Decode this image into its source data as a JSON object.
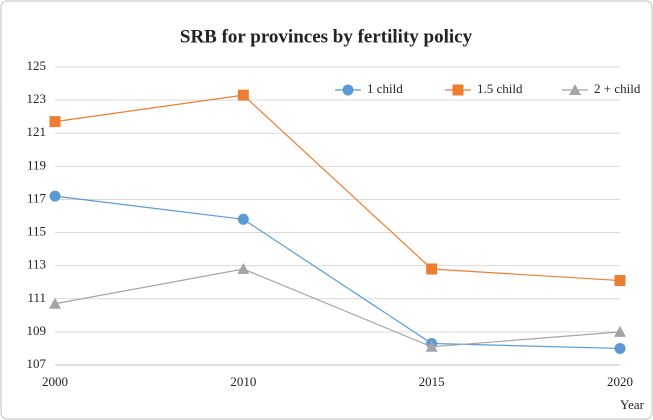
{
  "chart_data": {
    "type": "line",
    "title": "SRB for provinces by fertility policy",
    "x_label": "Year",
    "categories": [
      "2000",
      "2010",
      "2015",
      "2020"
    ],
    "series": [
      {
        "name": "1 child",
        "color": "#5b9bd5",
        "marker": "circle",
        "values": [
          117.2,
          115.8,
          108.3,
          108.0
        ]
      },
      {
        "name": "1.5 child",
        "color": "#ed7d31",
        "marker": "square",
        "values": [
          121.7,
          123.3,
          112.8,
          112.1
        ]
      },
      {
        "name": "2 + child",
        "color": "#a5a5a5",
        "marker": "triangle",
        "values": [
          110.7,
          112.8,
          108.1,
          109.0
        ]
      }
    ],
    "ylim": [
      107,
      125
    ],
    "yticks": [
      107,
      109,
      111,
      113,
      115,
      117,
      119,
      121,
      123,
      125
    ],
    "grid": true,
    "legend": "top-right"
  }
}
